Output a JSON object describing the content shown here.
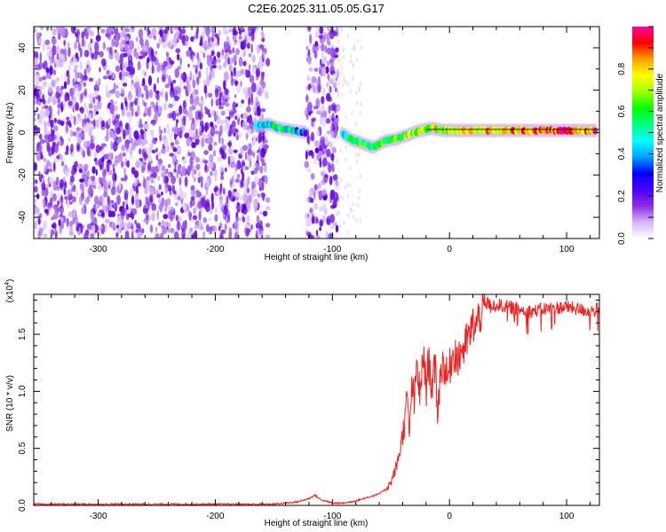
{
  "title": "C2E6.2025.311.05.05.G17",
  "chart_data": [
    {
      "type": "heatmap",
      "name": "spectrogram",
      "xlabel": "Height of straight line (km)",
      "ylabel": "Frequency (Hz)",
      "xlim": [
        -355,
        128
      ],
      "ylim": [
        -50,
        50
      ],
      "xticks": [
        -300,
        -200,
        -100,
        0,
        100
      ],
      "yticks": [
        -40,
        -20,
        0,
        20,
        40
      ],
      "colorbar": {
        "label": "Normalized spectral amplitude",
        "range": [
          0,
          1
        ],
        "ticks": [
          "0.0",
          "0.2",
          "0.4",
          "0.6",
          "0.8"
        ],
        "colors": [
          "#ffffff",
          "#d8b4f8",
          "#8a2be2",
          "#4b00ff",
          "#0000ff",
          "#00a0ff",
          "#00ffff",
          "#00ff80",
          "#00ff00",
          "#a0ff00",
          "#ffff00",
          "#ffa000",
          "#ff0000",
          "#ff00a0"
        ]
      },
      "noise_regions_km": [
        [
          -355,
          -155
        ],
        [
          -122,
          -95
        ]
      ],
      "signal_track": [
        {
          "x": -165,
          "f": 3,
          "amp": 0.45
        },
        {
          "x": -155,
          "f": 4,
          "amp": 0.5
        },
        {
          "x": -145,
          "f": 2,
          "amp": 0.55
        },
        {
          "x": -135,
          "f": 1,
          "amp": 0.5
        },
        {
          "x": -122,
          "f": 0,
          "amp": 0.35
        },
        {
          "x": -92,
          "f": 0,
          "amp": 0.45
        },
        {
          "x": -85,
          "f": -3,
          "amp": 0.5
        },
        {
          "x": -75,
          "f": -5,
          "amp": 0.6
        },
        {
          "x": -65,
          "f": -7,
          "amp": 0.55
        },
        {
          "x": -55,
          "f": -4,
          "amp": 0.6
        },
        {
          "x": -45,
          "f": -3,
          "amp": 0.6
        },
        {
          "x": -35,
          "f": -1,
          "amp": 0.65
        },
        {
          "x": -25,
          "f": 1,
          "amp": 0.7
        },
        {
          "x": -15,
          "f": 2,
          "amp": 0.7
        },
        {
          "x": -5,
          "f": 1,
          "amp": 0.7
        },
        {
          "x": 5,
          "f": 1,
          "amp": 0.75
        },
        {
          "x": 25,
          "f": 1,
          "amp": 0.75
        },
        {
          "x": 45,
          "f": 1,
          "amp": 0.8
        },
        {
          "x": 65,
          "f": 1,
          "amp": 0.85
        },
        {
          "x": 85,
          "f": 1,
          "amp": 0.9
        },
        {
          "x": 105,
          "f": 1,
          "amp": 0.85
        },
        {
          "x": 125,
          "f": 1,
          "amp": 0.85
        }
      ]
    },
    {
      "type": "line",
      "name": "snr",
      "xlabel": "Height of straight line (km)",
      "ylabel": "SNR (10 * v/v)",
      "yscale_label": "(x10",
      "yscale_exp": "4",
      "xlim": [
        -355,
        128
      ],
      "ylim": [
        0,
        1.85
      ],
      "xticks": [
        -300,
        -200,
        -100,
        0,
        100
      ],
      "yticks": [
        "0.0",
        "0.5",
        "1.0",
        "1.5"
      ],
      "color": "#ee2222",
      "series": [
        {
          "name": "SNR (x10^4)",
          "x": [
            -355,
            -300,
            -250,
            -200,
            -150,
            -130,
            -120,
            -115,
            -110,
            -100,
            -90,
            -80,
            -70,
            -60,
            -55,
            -50,
            -45,
            -42,
            -40,
            -38,
            -36,
            -34,
            -32,
            -30,
            -28,
            -25,
            -22,
            -20,
            -18,
            -15,
            -12,
            -10,
            -8,
            -5,
            -2,
            0,
            2,
            5,
            8,
            10,
            12,
            15,
            18,
            20,
            22,
            25,
            28,
            30,
            33,
            36,
            40,
            50,
            60,
            70,
            80,
            90,
            100,
            110,
            120,
            128
          ],
          "y": [
            0.01,
            0.01,
            0.01,
            0.01,
            0.01,
            0.03,
            0.06,
            0.09,
            0.05,
            0.02,
            0.02,
            0.04,
            0.07,
            0.1,
            0.14,
            0.2,
            0.35,
            0.5,
            0.62,
            0.75,
            0.95,
            0.6,
            1.1,
            0.85,
            1.25,
            0.95,
            1.35,
            1.0,
            1.28,
            1.05,
            1.2,
            0.8,
            1.15,
            1.25,
            1.1,
            1.2,
            1.3,
            1.35,
            1.25,
            1.4,
            1.35,
            1.45,
            1.5,
            1.6,
            1.55,
            1.65,
            1.7,
            1.75,
            1.78,
            1.72,
            1.76,
            1.74,
            1.72,
            1.7,
            1.72,
            1.73,
            1.74,
            1.72,
            1.7,
            1.72
          ]
        }
      ]
    }
  ]
}
